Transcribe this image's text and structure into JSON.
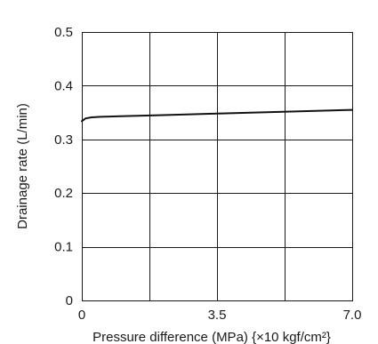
{
  "chart_data": {
    "type": "line",
    "xlabel": "Pressure difference (MPa) {×10 kgf/cm²}",
    "ylabel": "Drainage rate (L/min)",
    "xlim": [
      0,
      7.0
    ],
    "ylim": [
      0,
      0.5
    ],
    "x_tick_labels": [
      {
        "value": 0,
        "label": "0"
      },
      {
        "value": 3.5,
        "label": "3.5"
      },
      {
        "value": 7.0,
        "label": "7.0"
      }
    ],
    "x_gridlines": [
      0,
      1.75,
      3.5,
      5.25,
      7.0
    ],
    "y_ticks": [
      {
        "value": 0,
        "label": "0"
      },
      {
        "value": 0.1,
        "label": "0.1"
      },
      {
        "value": 0.2,
        "label": "0.2"
      },
      {
        "value": 0.3,
        "label": "0.3"
      },
      {
        "value": 0.4,
        "label": "0.4"
      },
      {
        "value": 0.5,
        "label": "0.5"
      }
    ],
    "grid": true,
    "series": [
      {
        "x": [
          0,
          0.1,
          0.25,
          0.5,
          1.0,
          2.0,
          3.5,
          5.0,
          7.0
        ],
        "y": [
          0.334,
          0.339,
          0.341,
          0.342,
          0.343,
          0.345,
          0.348,
          0.351,
          0.355
        ]
      }
    ]
  }
}
